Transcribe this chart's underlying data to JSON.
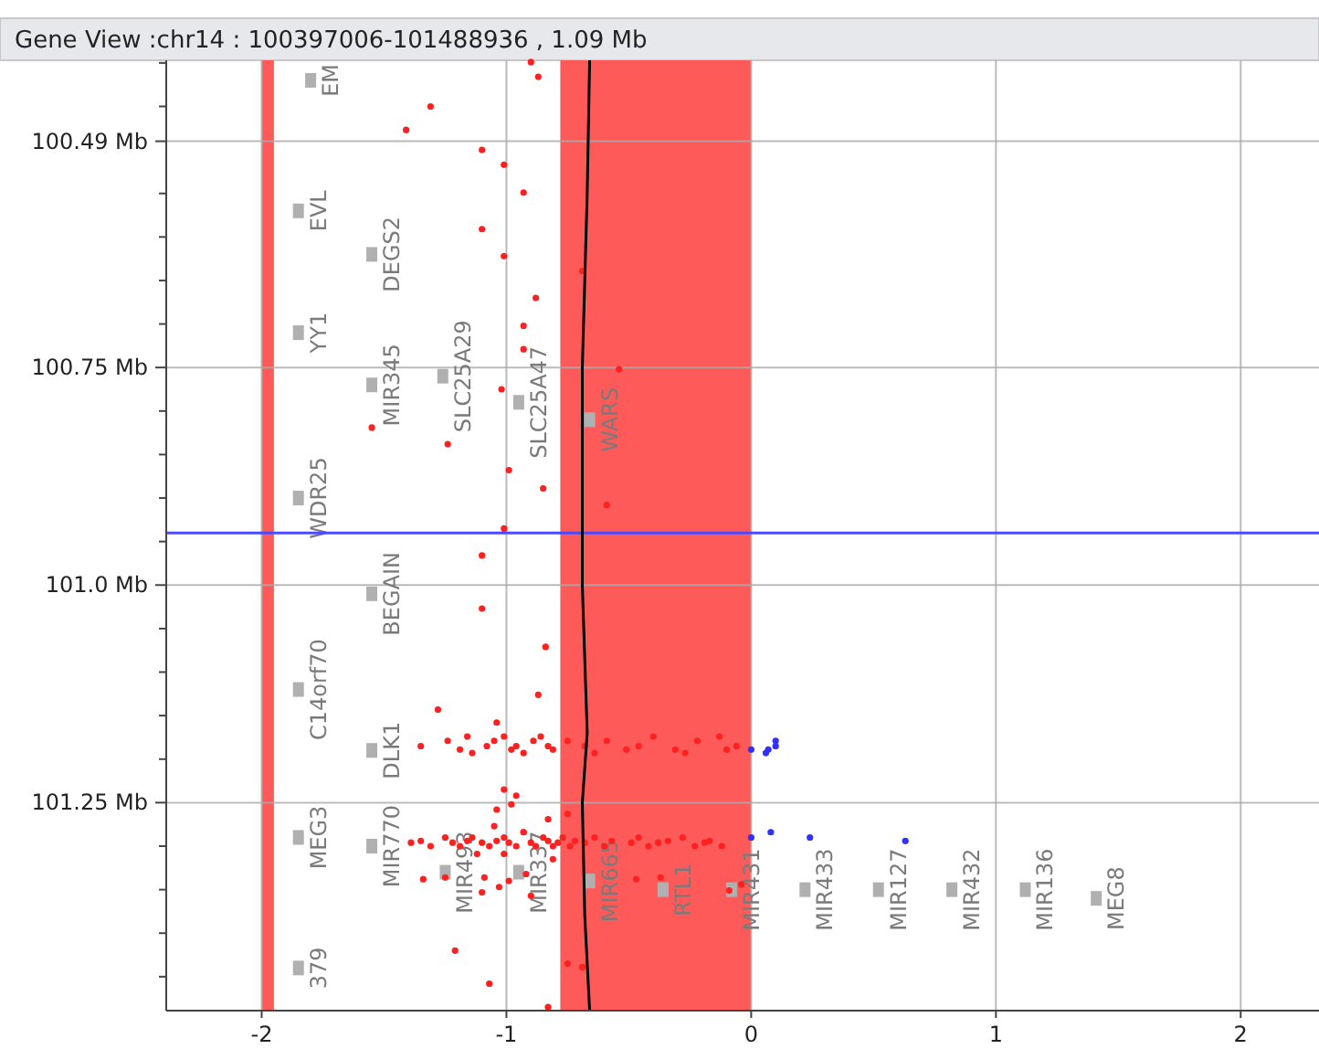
{
  "chart_data": {
    "type": "scatter",
    "title": "Gene View :chr14 : 100397006-101488936 , 1.09 Mb",
    "xlim": [
      -2.39,
      2.32
    ],
    "xticks": [
      -2,
      -1,
      0,
      1,
      2
    ],
    "ylim": [
      101.489,
      100.397
    ],
    "yticks": [
      {
        "value": 100.4,
        "label": null
      },
      {
        "value": 100.45,
        "label": null
      },
      {
        "value": 100.49,
        "label": "100.49 Mb"
      },
      {
        "value": 100.55,
        "label": null
      },
      {
        "value": 100.6,
        "label": null
      },
      {
        "value": 100.65,
        "label": null
      },
      {
        "value": 100.7,
        "label": null
      },
      {
        "value": 100.75,
        "label": "100.75 Mb"
      },
      {
        "value": 100.8,
        "label": null
      },
      {
        "value": 100.85,
        "label": null
      },
      {
        "value": 100.9,
        "label": null
      },
      {
        "value": 100.95,
        "label": null
      },
      {
        "value": 101.0,
        "label": "101.0 Mb"
      },
      {
        "value": 101.05,
        "label": null
      },
      {
        "value": 101.1,
        "label": null
      },
      {
        "value": 101.15,
        "label": null
      },
      {
        "value": 101.2,
        "label": null
      },
      {
        "value": 101.25,
        "label": "101.25 Mb"
      },
      {
        "value": 101.3,
        "label": null
      },
      {
        "value": 101.35,
        "label": null
      },
      {
        "value": 101.4,
        "label": null
      },
      {
        "value": 101.45,
        "label": null
      }
    ],
    "grid": true,
    "bands": [
      {
        "axis": "x",
        "from": -2,
        "to": -1.95,
        "color": "#ff5a5a"
      },
      {
        "axis": "x",
        "from": -0.78,
        "to": 0,
        "color": "#ff5a5a"
      }
    ],
    "ref_lines": [
      {
        "axis": "y",
        "value": 100.94,
        "color": "#4a4aff"
      }
    ],
    "series": [
      {
        "color": "#ff2020",
        "x": [
          -0.9,
          -0.87,
          -1.31,
          -1.41,
          -1.1,
          -1.01,
          -0.93,
          -1.1,
          -1.01,
          -0.69,
          -0.88,
          -0.93,
          -0.93,
          -0.54,
          -1.02,
          -1.55,
          -1.24,
          -0.99,
          -0.85,
          -0.59,
          -1.01,
          -1.1,
          -1.1,
          -0.84,
          -0.87,
          -1.28,
          -1.04,
          -1.35,
          -1.24,
          -1.19,
          -1.16,
          -1.14,
          -1.08,
          -1.05,
          -1.01,
          -0.98,
          -0.96,
          -0.93,
          -0.89,
          -0.86,
          -0.83,
          -0.81,
          -0.75,
          -0.68,
          -0.64,
          -0.59,
          -0.51,
          -0.46,
          -0.4,
          -0.31,
          -0.27,
          -0.22,
          -0.13,
          -0.1,
          -0.06,
          -1.01,
          -0.98,
          -0.96,
          -1.04,
          -1.05,
          -1.01,
          -0.93,
          -0.83,
          -0.75,
          -1.39,
          -1.35,
          -1.31,
          -1.25,
          -1.22,
          -1.19,
          -1.16,
          -1.14,
          -1.12,
          -1.1,
          -1.07,
          -1.04,
          -1.01,
          -0.99,
          -0.96,
          -0.93,
          -0.9,
          -0.88,
          -0.85,
          -0.83,
          -0.81,
          -0.79,
          -0.77,
          -0.74,
          -0.72,
          -0.68,
          -0.64,
          -0.6,
          -0.57,
          -0.49,
          -0.46,
          -0.42,
          -0.38,
          -0.34,
          -0.28,
          -0.23,
          -0.19,
          -0.17,
          -0.12,
          -1.34,
          -1.25,
          -1.09,
          -1.03,
          -0.99,
          -0.92,
          -0.81,
          -1.1,
          -0.9,
          -0.47,
          -0.37,
          -0.09,
          -0.04,
          -1.21,
          -1.07,
          -0.75,
          -0.83,
          -0.69
        ],
        "values": [
          100.399,
          100.416,
          100.45,
          100.477,
          100.5,
          100.517,
          100.549,
          100.591,
          100.622,
          100.639,
          100.67,
          100.702,
          100.729,
          100.752,
          100.775,
          100.819,
          100.838,
          100.868,
          100.889,
          100.908,
          100.935,
          100.966,
          101.027,
          101.071,
          101.126,
          101.143,
          101.158,
          101.185,
          101.179,
          101.189,
          101.174,
          101.193,
          101.185,
          101.179,
          101.174,
          101.189,
          101.185,
          101.193,
          101.179,
          101.174,
          101.185,
          101.189,
          101.179,
          101.185,
          101.193,
          101.179,
          101.189,
          101.185,
          101.174,
          101.189,
          101.193,
          101.179,
          101.174,
          101.189,
          101.185,
          101.235,
          101.252,
          101.242,
          101.258,
          101.277,
          101.309,
          101.284,
          101.269,
          101.263,
          101.296,
          101.294,
          101.3,
          101.29,
          101.296,
          101.3,
          101.294,
          101.29,
          101.309,
          101.296,
          101.3,
          101.294,
          101.29,
          101.296,
          101.3,
          101.284,
          101.296,
          101.3,
          101.29,
          101.294,
          101.3,
          101.296,
          101.29,
          101.3,
          101.294,
          101.296,
          101.29,
          101.3,
          101.294,
          101.296,
          101.29,
          101.3,
          101.296,
          101.294,
          101.29,
          101.3,
          101.296,
          101.294,
          101.3,
          101.338,
          101.336,
          101.336,
          101.347,
          101.34,
          101.332,
          101.315,
          101.353,
          101.357,
          101.338,
          101.336,
          101.351,
          101.344,
          101.42,
          101.458,
          101.435,
          101.485,
          101.439
        ]
      },
      {
        "type": "scatter",
        "color": "#3030ff",
        "x": [
          0,
          0.06,
          0.07,
          0.1,
          0.1,
          0,
          0.08,
          0.24,
          0.63
        ],
        "values": [
          101.189,
          101.193,
          101.189,
          101.185,
          101.179,
          101.29,
          101.284,
          101.29,
          101.294
        ]
      },
      {
        "type": "line",
        "color": "#000000",
        "x": [
          -0.66,
          -0.67,
          -0.69,
          -0.69,
          -0.67,
          -0.69,
          -0.68,
          -0.66
        ],
        "values": [
          100.397,
          100.55,
          100.75,
          101.0,
          101.17,
          101.25,
          101.38,
          101.489
        ]
      }
    ],
    "annotations": [
      {
        "text": "EM",
        "x": -1.8,
        "y": 100.42
      },
      {
        "text": "EVL",
        "x": -1.85,
        "y": 100.57
      },
      {
        "text": "DEGS2",
        "x": -1.55,
        "y": 100.62
      },
      {
        "text": "YY1",
        "x": -1.85,
        "y": 100.71
      },
      {
        "text": "MIR345",
        "x": -1.55,
        "y": 100.77
      },
      {
        "text": "SLC25A29",
        "x": -1.26,
        "y": 100.76
      },
      {
        "text": "SLC25A47",
        "x": -0.95,
        "y": 100.79
      },
      {
        "text": "WARS",
        "x": -0.66,
        "y": 100.81
      },
      {
        "text": "WDR25",
        "x": -1.85,
        "y": 100.9
      },
      {
        "text": "BEGAIN",
        "x": -1.55,
        "y": 101.01
      },
      {
        "text": "C14orf70",
        "x": -1.85,
        "y": 101.12
      },
      {
        "text": "DLK1",
        "x": -1.55,
        "y": 101.19
      },
      {
        "text": "MEG3",
        "x": -1.85,
        "y": 101.29
      },
      {
        "text": "MIR770",
        "x": -1.55,
        "y": 101.3
      },
      {
        "text": "MIR493",
        "x": -1.25,
        "y": 101.33
      },
      {
        "text": "MIR337",
        "x": -0.95,
        "y": 101.33
      },
      {
        "text": "MIR665",
        "x": -0.66,
        "y": 101.34
      },
      {
        "text": "RTL1",
        "x": -0.36,
        "y": 101.35
      },
      {
        "text": "MIR431",
        "x": -0.08,
        "y": 101.35
      },
      {
        "text": "MIR433",
        "x": 0.22,
        "y": 101.35
      },
      {
        "text": "MIR127",
        "x": 0.52,
        "y": 101.35
      },
      {
        "text": "MIR432",
        "x": 0.82,
        "y": 101.35
      },
      {
        "text": "MIR136",
        "x": 1.12,
        "y": 101.35
      },
      {
        "text": "MEG8",
        "x": 1.41,
        "y": 101.36
      },
      {
        "text": "379",
        "x": -1.85,
        "y": 101.44
      }
    ]
  }
}
